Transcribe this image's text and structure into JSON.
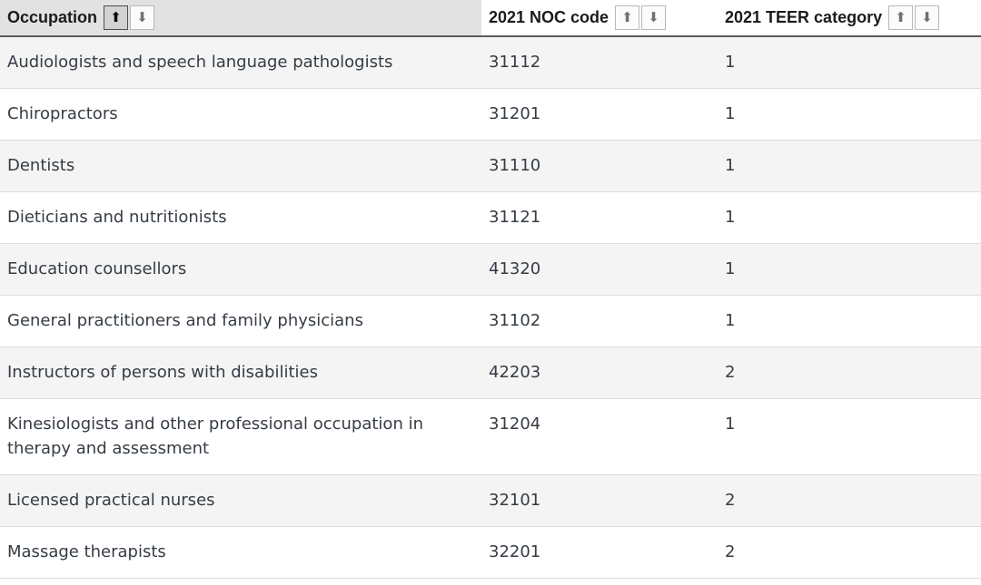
{
  "icons": {
    "sort_up": "⬆",
    "sort_down": "⬇"
  },
  "colors": {
    "sorted_header_bg": "#e2e2e2",
    "row_stripe": "#f4f4f4",
    "header_border": "#5b5b5b",
    "row_border": "#dcdcdc",
    "active_sort_button_bg": "#d2d2d2",
    "inactive_sort_button_bg": "#fbfbfb"
  },
  "table": {
    "columns": [
      {
        "label": "Occupation",
        "sort_state": "ascending"
      },
      {
        "label": "2021 NOC code",
        "sort_state": "none"
      },
      {
        "label": "2021 TEER category",
        "sort_state": "none"
      }
    ],
    "rows": [
      {
        "occupation": "Audiologists and speech language pathologists",
        "noc_code": "31112",
        "teer_category": "1"
      },
      {
        "occupation": "Chiropractors",
        "noc_code": "31201",
        "teer_category": "1"
      },
      {
        "occupation": "Dentists",
        "noc_code": "31110",
        "teer_category": "1"
      },
      {
        "occupation": "Dieticians and nutritionists",
        "noc_code": "31121",
        "teer_category": "1"
      },
      {
        "occupation": "Education counsellors",
        "noc_code": "41320",
        "teer_category": "1"
      },
      {
        "occupation": "General practitioners and family physicians",
        "noc_code": "31102",
        "teer_category": "1"
      },
      {
        "occupation": "Instructors of persons with disabilities",
        "noc_code": "42203",
        "teer_category": "2"
      },
      {
        "occupation": "Kinesiologists and other professional occupation in therapy and assessment",
        "noc_code": "31204",
        "teer_category": "1"
      },
      {
        "occupation": "Licensed practical nurses",
        "noc_code": "32101",
        "teer_category": "2"
      },
      {
        "occupation": "Massage therapists",
        "noc_code": "32201",
        "teer_category": "2"
      }
    ]
  }
}
